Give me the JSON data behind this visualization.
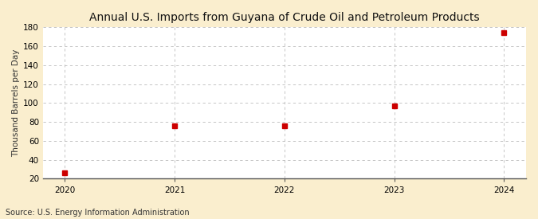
{
  "title": "Annual U.S. Imports from Guyana of Crude Oil and Petroleum Products",
  "ylabel": "Thousand Barrels per Day",
  "source": "Source: U.S. Energy Information Administration",
  "x": [
    2020,
    2021,
    2022,
    2023,
    2024
  ],
  "y": [
    26,
    76,
    76,
    97,
    174
  ],
  "marker_color": "#cc0000",
  "marker_size": 4,
  "ylim": [
    20,
    180
  ],
  "yticks": [
    20,
    40,
    60,
    80,
    100,
    120,
    140,
    160,
    180
  ],
  "xticks": [
    2020,
    2021,
    2022,
    2023,
    2024
  ],
  "figure_bg_color": "#faeece",
  "plot_bg_color": "#ffffff",
  "grid_color": "#bbbbbb",
  "title_fontsize": 10,
  "label_fontsize": 7.5,
  "tick_fontsize": 7.5,
  "source_fontsize": 7.0
}
